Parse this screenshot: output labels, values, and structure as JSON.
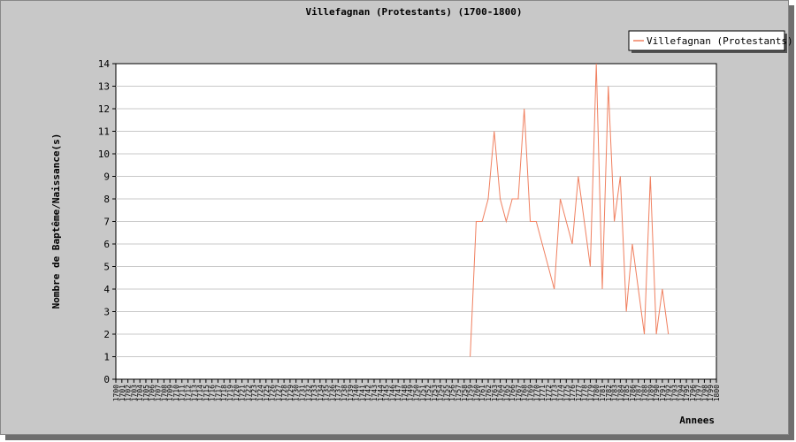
{
  "chart_data": {
    "type": "line",
    "title": "Villefagnan (Protestants) (1700-1800)",
    "xlabel": "Annees",
    "ylabel": "Nombre de Baptême/Naissance(s)",
    "xlim": [
      1700,
      1800
    ],
    "ylim": [
      0,
      14
    ],
    "y_ticks": [
      0,
      1,
      2,
      3,
      4,
      5,
      6,
      7,
      8,
      9,
      10,
      11,
      12,
      13,
      14
    ],
    "grid": "horizontal",
    "legend_position": "top-right",
    "series": [
      {
        "name": "Villefagnan (Protestants)",
        "color": "#f08060",
        "points": [
          [
            1759,
            1
          ],
          [
            1760,
            7
          ],
          [
            1761,
            7
          ],
          [
            1762,
            8
          ],
          [
            1763,
            11
          ],
          [
            1764,
            8
          ],
          [
            1765,
            7
          ],
          [
            1766,
            8
          ],
          [
            1767,
            8
          ],
          [
            1768,
            12
          ],
          [
            1769,
            7
          ],
          [
            1770,
            7
          ],
          [
            1771,
            6
          ],
          [
            1772,
            5
          ],
          [
            1773,
            4
          ],
          [
            1774,
            8
          ],
          [
            1775,
            7
          ],
          [
            1776,
            6
          ],
          [
            1777,
            9
          ],
          [
            1778,
            7
          ],
          [
            1779,
            5
          ],
          [
            1780,
            14
          ],
          [
            1781,
            4
          ],
          [
            1782,
            13
          ],
          [
            1783,
            7
          ],
          [
            1784,
            9
          ],
          [
            1785,
            3
          ],
          [
            1786,
            6
          ],
          [
            1787,
            4
          ],
          [
            1788,
            2
          ],
          [
            1789,
            9
          ],
          [
            1790,
            2
          ],
          [
            1791,
            4
          ],
          [
            1792,
            2
          ]
        ]
      }
    ]
  }
}
